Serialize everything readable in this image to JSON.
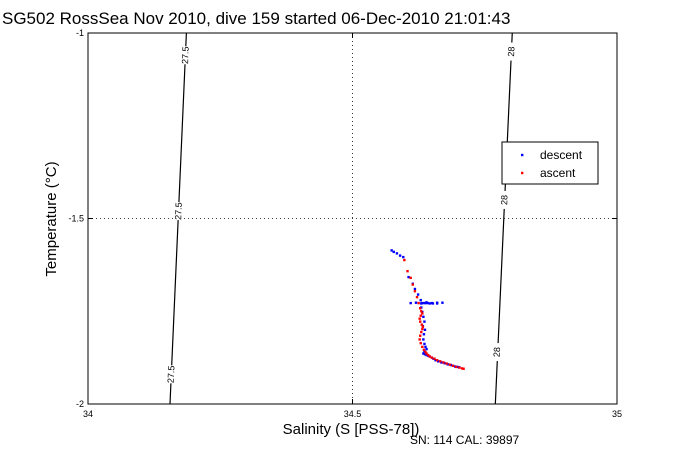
{
  "chart_data": {
    "type": "scatter",
    "title": "SG502 RossSea Nov 2010, dive 159 started 06-Dec-2010 21:01:43",
    "xlabel": "Salinity (S [PSS-78])",
    "ylabel": "Temperature (°C)",
    "xlim": [
      34,
      35
    ],
    "ylim": [
      -2,
      -1
    ],
    "xticks": [
      34,
      34.5,
      35
    ],
    "yticks": [
      -2,
      -1.5,
      -1
    ],
    "xtick_labels": [
      "34",
      "34.5",
      "35"
    ],
    "ytick_labels": [
      "-2",
      "-1.5",
      "-1"
    ],
    "grid": "dotted",
    "legend": "right",
    "density_contours": [
      {
        "label": "27.5",
        "points": [
          [
            34.186,
            -1.0
          ],
          [
            34.155,
            -2.0
          ]
        ],
        "label_at": [
          [
            34.184,
            -1.06
          ],
          [
            34.171,
            -1.48
          ],
          [
            34.157,
            -1.92
          ]
        ]
      },
      {
        "label": "28",
        "points": [
          [
            34.802,
            -1.0
          ],
          [
            34.77,
            -2.0
          ]
        ],
        "label_at": [
          [
            34.8,
            -1.05
          ],
          [
            34.787,
            -1.45
          ],
          [
            34.773,
            -1.86
          ]
        ]
      }
    ],
    "series": [
      {
        "name": "descent",
        "color": "#0000ff",
        "x": [
          34.574,
          34.578,
          34.584,
          34.59,
          34.596,
          34.606,
          34.614,
          34.618,
          34.624,
          34.629,
          34.631,
          34.635,
          34.638,
          34.642,
          34.646,
          34.652,
          34.66,
          34.67,
          34.61,
          34.62,
          34.63,
          34.64,
          34.65,
          34.66,
          34.63,
          34.632,
          34.634,
          34.636,
          34.633,
          34.637,
          34.635,
          34.634,
          34.636,
          34.638,
          34.64,
          34.636,
          34.634,
          34.637,
          34.64,
          34.643,
          34.646,
          34.65,
          34.653,
          34.657,
          34.662,
          34.668,
          34.674,
          34.68,
          34.686,
          34.69,
          34.694,
          34.698,
          34.702
        ],
        "y": [
          -1.586,
          -1.59,
          -1.594,
          -1.6,
          -1.604,
          -1.658,
          -1.676,
          -1.69,
          -1.705,
          -1.72,
          -1.728,
          -1.728,
          -1.728,
          -1.728,
          -1.729,
          -1.729,
          -1.729,
          -1.727,
          -1.728,
          -1.727,
          -1.729,
          -1.726,
          -1.728,
          -1.727,
          -1.74,
          -1.752,
          -1.765,
          -1.778,
          -1.79,
          -1.8,
          -1.812,
          -1.826,
          -1.838,
          -1.846,
          -1.852,
          -1.858,
          -1.864,
          -1.866,
          -1.868,
          -1.87,
          -1.872,
          -1.875,
          -1.878,
          -1.882,
          -1.885,
          -1.888,
          -1.89,
          -1.893,
          -1.895,
          -1.897,
          -1.899,
          -1.9,
          -1.901
        ]
      },
      {
        "name": "ascent",
        "color": "#ff0000",
        "x": [
          34.598,
          34.604,
          34.61,
          34.614,
          34.618,
          34.622,
          34.625,
          34.628,
          34.63,
          34.632,
          34.629,
          34.627,
          34.628,
          34.631,
          34.633,
          34.632,
          34.63,
          34.628,
          34.627,
          34.629,
          34.632,
          34.635,
          34.638,
          34.64,
          34.643,
          34.646,
          34.65,
          34.655,
          34.66,
          34.666,
          34.672,
          34.678,
          34.684,
          34.69,
          34.696,
          34.702,
          34.707,
          34.71
        ],
        "y": [
          -1.612,
          -1.642,
          -1.66,
          -1.678,
          -1.696,
          -1.712,
          -1.728,
          -1.742,
          -1.75,
          -1.756,
          -1.762,
          -1.77,
          -1.778,
          -1.786,
          -1.792,
          -1.798,
          -1.806,
          -1.816,
          -1.826,
          -1.836,
          -1.846,
          -1.854,
          -1.86,
          -1.864,
          -1.868,
          -1.872,
          -1.875,
          -1.878,
          -1.882,
          -1.885,
          -1.888,
          -1.891,
          -1.894,
          -1.897,
          -1.9,
          -1.902,
          -1.904,
          -1.905
        ]
      }
    ]
  },
  "footer": {
    "sn": "SN: 114  CAL: 39897"
  }
}
